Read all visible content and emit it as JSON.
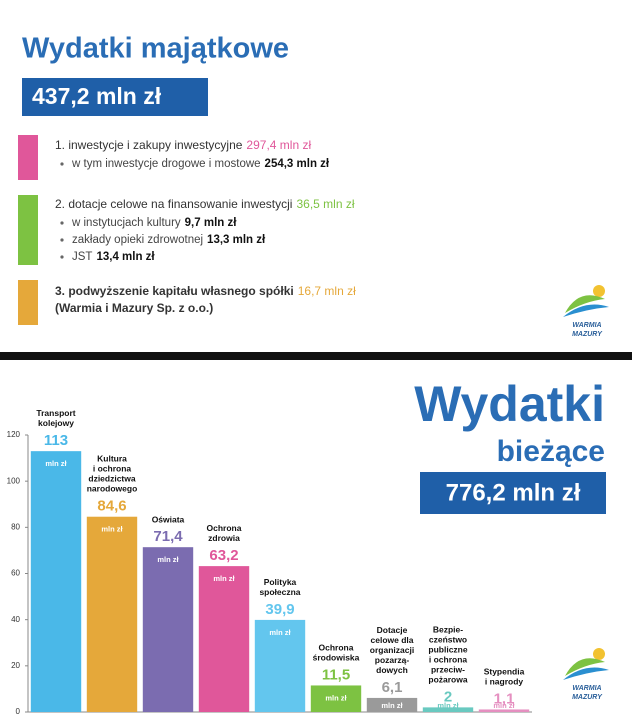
{
  "capital": {
    "title": "Wydatki majątkowe",
    "total": "437,2 mln zł",
    "items": [
      {
        "label": "1. inwestycje i zakupy inwestycyjne",
        "value": "297,4 mln zł",
        "color": "#e0579a",
        "details": [
          {
            "label": "w tym inwestycje drogowe i mostowe",
            "value": "254,3 mln zł"
          }
        ]
      },
      {
        "label": "2. dotacje celowe na finansowanie inwestycji",
        "value": "36,5 mln zł",
        "color": "#7dc242",
        "details": [
          {
            "label": "w instytucjach kultury",
            "value": "9,7 mln zł"
          },
          {
            "label": "zakłady opieki zdrowotnej",
            "value": "13,3 mln zł"
          },
          {
            "label": "JST",
            "value": "13,4 mln zł"
          }
        ]
      },
      {
        "label": "3. podwyższenie kapitału własnego spółki",
        "value": "16,7 mln zł",
        "color": "#e5a83a",
        "note": "(Warmia i Mazury Sp. z o.o.)",
        "details": []
      }
    ]
  },
  "logo": {
    "lines": [
      "WARMIA",
      "MAZURY"
    ]
  },
  "chart_data": {
    "type": "bar",
    "title": "Wydatki",
    "subtitle": "bieżące",
    "total": "776,2 mln zł",
    "unit": "mln zł",
    "categories": [
      "Transport\nkolejowy",
      "Kultura\ni ochrona\ndziedzictwa\nnarodowego",
      "Oświata",
      "Ochrona\nzdrowia",
      "Polityka\nspołeczna",
      "Ochrona\nśrodowiska",
      "Dotacje\ncelowe dla\norganizacji\npozarzą-\ndowych",
      "Bezpie-\nczeństwo\npubliczne\ni ochrona\nprzeciw-\npożarowa",
      "Stypendia\ni nagrody"
    ],
    "values": [
      113,
      84.6,
      71.4,
      63.2,
      39.9,
      11.5,
      6.1,
      2,
      1.1
    ],
    "value_labels": [
      "113",
      "84,6",
      "71,4",
      "63,2",
      "39,9",
      "11,5",
      "6,1",
      "2",
      "1,1"
    ],
    "colors": [
      "#4ab8e8",
      "#e5a83a",
      "#7b6cb0",
      "#e0579a",
      "#63c6ee",
      "#7dc242",
      "#9a9a9a",
      "#69c9c0",
      "#e58fc0"
    ],
    "ylim": [
      0,
      120
    ],
    "yticks": [
      0,
      20,
      40,
      60,
      80,
      100,
      120
    ]
  }
}
